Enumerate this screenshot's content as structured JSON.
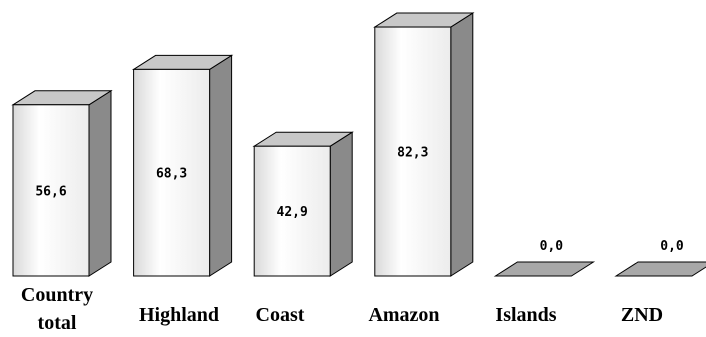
{
  "chart_data": {
    "type": "bar",
    "title": "",
    "xlabel": "",
    "ylabel": "",
    "ylim": [
      0,
      100
    ],
    "grid": false,
    "categories": [
      "Country total",
      "Highland",
      "Coast",
      "Amazon",
      "Islands",
      "ZND"
    ],
    "category_lines": [
      [
        "Country",
        "total"
      ],
      [
        "Highland"
      ],
      [
        "Coast"
      ],
      [
        "Amazon"
      ],
      [
        "Islands"
      ],
      [
        "ZND"
      ]
    ],
    "values": [
      56.6,
      68.3,
      42.9,
      82.3,
      0.0,
      0.0
    ],
    "value_labels": [
      "56,6",
      "68,3",
      "42,9",
      "82,3",
      "0,0",
      "0,0"
    ],
    "colors": {
      "front": "#f4f4f4",
      "side": "#8a8a8a",
      "top": "#c8c8c8",
      "edge": "#000000"
    }
  }
}
